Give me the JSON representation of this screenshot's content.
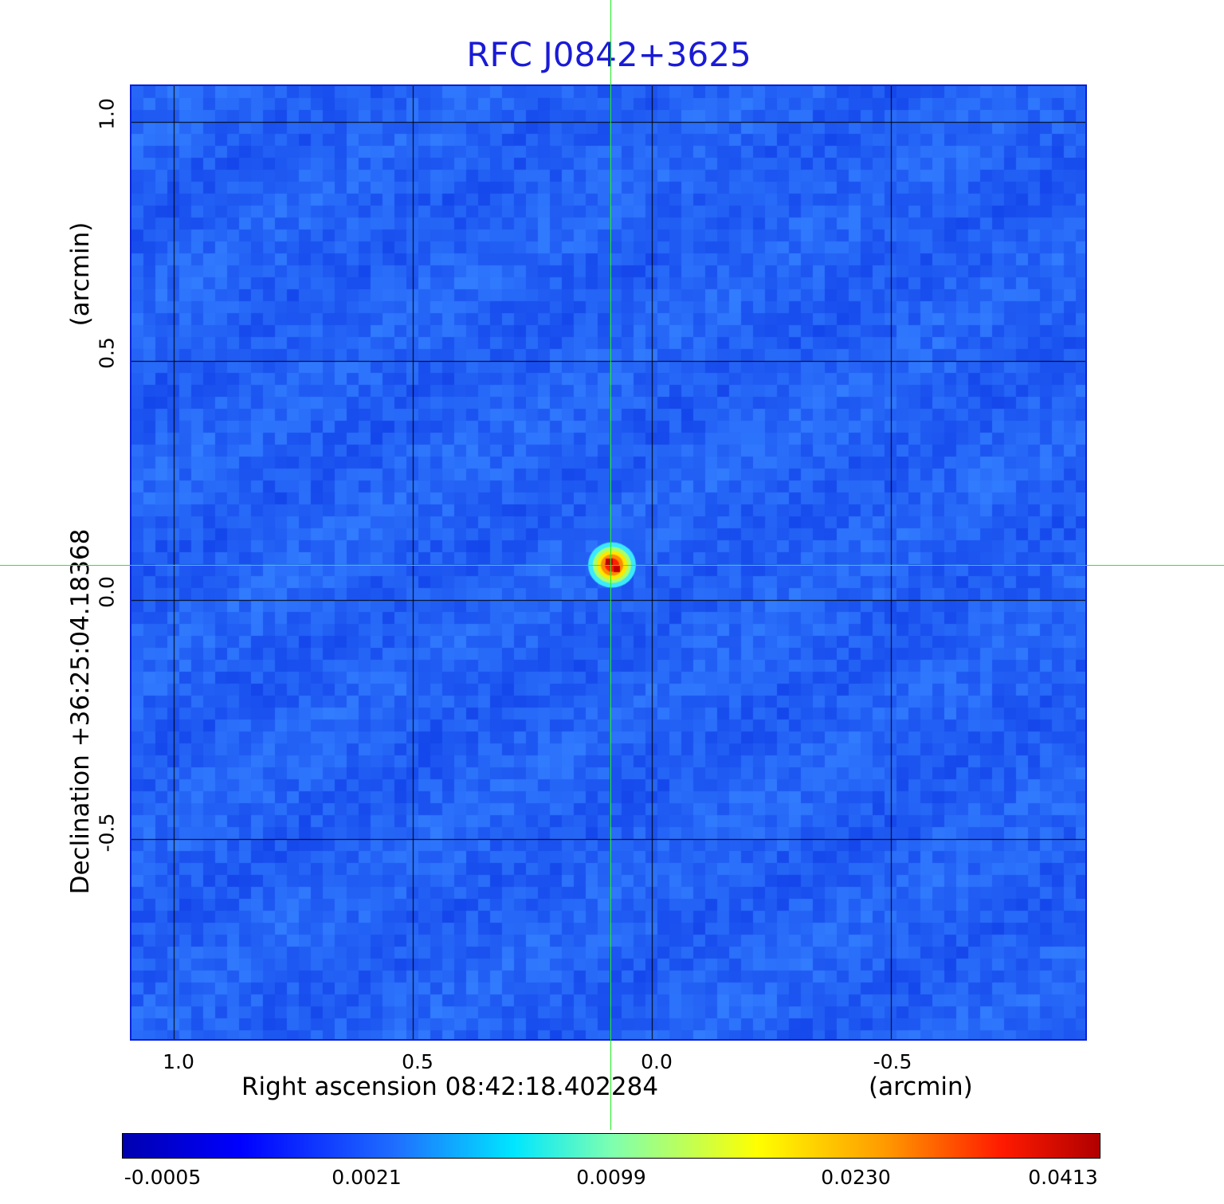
{
  "title": "RFC J0842+3625",
  "x_axis": {
    "label": "Right ascension  08:42:18.402284",
    "unit": "(arcmin)",
    "ticks": [
      "1.0",
      "0.5",
      "0.0",
      "-0.5"
    ]
  },
  "y_axis": {
    "label": "Declination  +36:25:04.18368",
    "unit": "(arcmin)",
    "ticks": [
      "1.0",
      "0.5",
      "0.0",
      "-0.5"
    ]
  },
  "colorbar": {
    "ticks": [
      "-0.0005",
      "0.0021",
      "0.0099",
      "0.0230",
      "0.0413"
    ]
  },
  "colors": {
    "background_field": "#1e4fff",
    "grid": "#000000",
    "crosshair": "#22ee22",
    "title": "#1a1ad6"
  }
}
